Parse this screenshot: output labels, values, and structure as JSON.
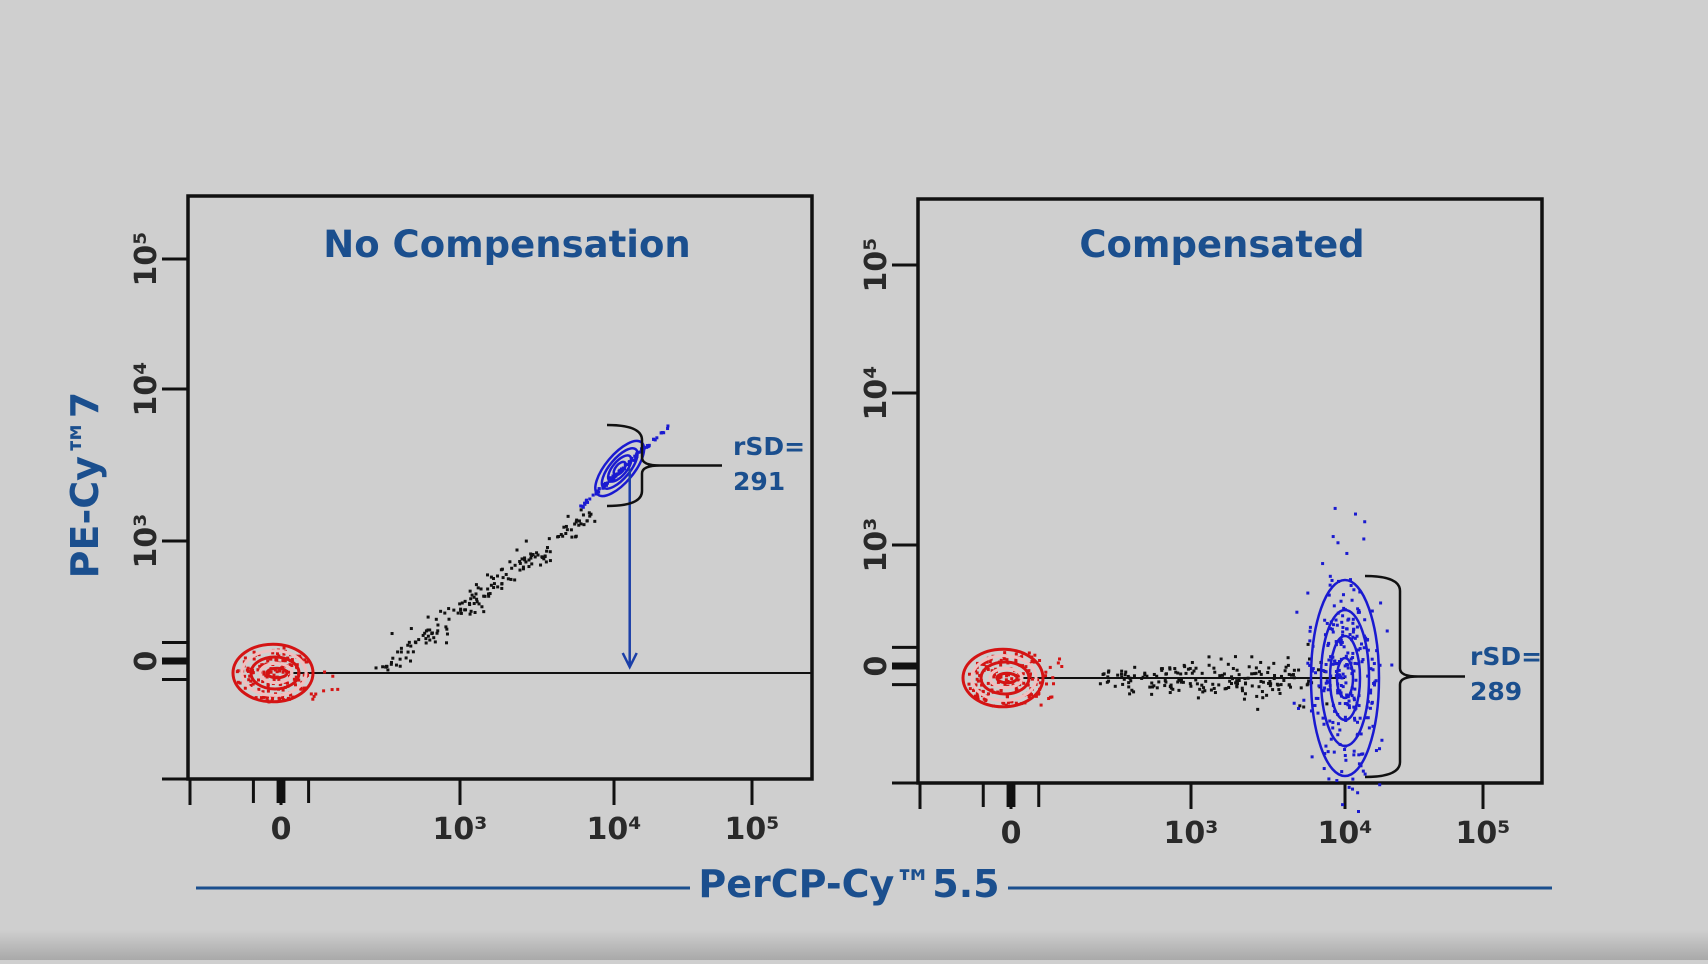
{
  "chart_data": [
    {
      "type": "scatter",
      "title": "No Compensation",
      "xlabel": "PerCP-Cy™5.5",
      "ylabel": "PE-Cy™7",
      "x_ticks": [
        {
          "value": 0,
          "label": "0"
        },
        {
          "value": 1000,
          "label": "10³"
        },
        {
          "value": 10000,
          "label": "10⁴"
        },
        {
          "value": 100000,
          "label": "10⁵"
        }
      ],
      "y_ticks": [
        {
          "value": 0,
          "label": "0"
        },
        {
          "value": 1000,
          "label": "10³"
        },
        {
          "value": 10000,
          "label": "10⁴"
        },
        {
          "value": 100000,
          "label": "10⁵"
        }
      ],
      "minor_ticks": [
        -30,
        -3,
        3,
        30
      ],
      "scale": "biexponential",
      "populations": [
        {
          "name": "negative",
          "color": "#d41414",
          "center": [
            0,
            0
          ],
          "style": "contour"
        },
        {
          "name": "intermediate",
          "color": "#111111",
          "from": [
            150,
            0
          ],
          "to": [
            7000,
            1800
          ],
          "style": "dots"
        },
        {
          "name": "positive",
          "color": "#1a1ad0",
          "center": [
            11000,
            3000
          ],
          "tilt": "diagonal",
          "style": "contour"
        }
      ],
      "annotation": {
        "label": "rSD=",
        "value": "291"
      }
    },
    {
      "type": "scatter",
      "title": "Compensated",
      "xlabel": "PerCP-Cy™5.5",
      "ylabel": "PE-Cy™7",
      "x_ticks": [
        {
          "value": 0,
          "label": "0"
        },
        {
          "value": 1000,
          "label": "10³"
        },
        {
          "value": 10000,
          "label": "10⁴"
        },
        {
          "value": 100000,
          "label": "10⁵"
        }
      ],
      "y_ticks": [
        {
          "value": 0,
          "label": "0"
        },
        {
          "value": 1000,
          "label": "10³"
        },
        {
          "value": 10000,
          "label": "10⁴"
        },
        {
          "value": 100000,
          "label": "10⁵"
        }
      ],
      "minor_ticks": [
        -30,
        -3,
        3,
        30
      ],
      "scale": "biexponential",
      "populations": [
        {
          "name": "negative",
          "color": "#d41414",
          "center": [
            0,
            0
          ],
          "style": "contour"
        },
        {
          "name": "intermediate",
          "color": "#111111",
          "from": [
            150,
            0
          ],
          "to": [
            7000,
            0
          ],
          "style": "dots"
        },
        {
          "name": "positive",
          "color": "#1a1ad0",
          "center": [
            10000,
            0
          ],
          "tilt": "vertical",
          "style": "contour"
        }
      ],
      "annotation": {
        "label": "rSD=",
        "value": "289"
      }
    }
  ],
  "shared_xlabel": "PerCP-Cy™5.5",
  "shared_ylabel": "PE-Cy™7",
  "colors": {
    "accent": "#1b4f8e",
    "background": "#cfcfcf"
  }
}
